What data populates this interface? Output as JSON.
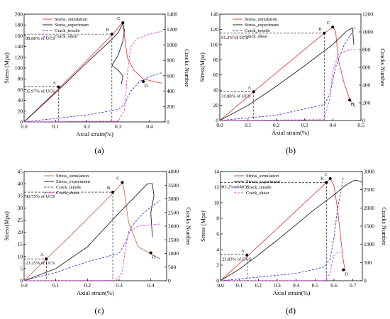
{
  "figure": {
    "panels": [
      {
        "caption": "(a)",
        "chart_data": {
          "type": "line",
          "xlabel": "Axial strain(%)",
          "ylabel": "Stress (Mpa)",
          "y2label": "Cracks Number",
          "xlim": [
            0,
            0.45
          ],
          "ylim": [
            0,
            200
          ],
          "y2lim": [
            0,
            1400
          ],
          "xticks": [
            "0.0",
            "0.1",
            "0.2",
            "0.3",
            "0.4"
          ],
          "yticks": [
            "0",
            "20",
            "40",
            "60",
            "80",
            "100",
            "120",
            "140",
            "160",
            "180",
            "200"
          ],
          "y2ticks": [
            "0",
            "200",
            "400",
            "600",
            "800",
            "1000",
            "1200",
            "1400"
          ],
          "legend_position": "top-left",
          "series": [
            {
              "name": "Stress_simulation",
              "color": "#e8443a",
              "dash": "solid",
              "axis": "left",
              "x": [
                0,
                0.1,
                0.2,
                0.28,
                0.31,
                0.315,
                0.32,
                0.33,
                0.35,
                0.38,
                0.42,
                0.44
              ],
              "y": [
                0,
                56,
                114,
                161,
                182,
                184,
                160,
                118,
                96,
                80,
                74,
                72
              ]
            },
            {
              "name": "Stress_experiment",
              "color": "#222222",
              "dash": "solid",
              "axis": "left",
              "x": [
                0,
                0.1,
                0.2,
                0.28,
                0.3,
                0.315,
                0.32,
                0.315,
                0.3,
                0.28,
                0.3,
                0.315,
                0.31
              ],
              "y": [
                0,
                54,
                110,
                153,
                166,
                183,
                170,
                150,
                124,
                105,
                96,
                85,
                70
              ]
            },
            {
              "name": "Crack_tensile",
              "color": "#3a3ad0",
              "dash": "dash",
              "axis": "right",
              "x": [
                0,
                0.2,
                0.3,
                0.32,
                0.34,
                0.37,
                0.4,
                0.44
              ],
              "y": [
                0,
                90,
                160,
                230,
                400,
                530,
                590,
                640
              ]
            },
            {
              "name": "Crack_shear",
              "color": "#e040e0",
              "dash": "dash",
              "axis": "right",
              "x": [
                0,
                0.3,
                0.32,
                0.33,
                0.34,
                0.36,
                0.4,
                0.44
              ],
              "y": [
                0,
                10,
                150,
                650,
                980,
                1080,
                1140,
                1180
              ]
            }
          ],
          "markers": [
            {
              "label": "A",
              "x": 0.11,
              "y": 65,
              "note": "35.97% of UCS"
            },
            {
              "label": "B",
              "x": 0.28,
              "y": 163,
              "note": "88.88% of UCS"
            },
            {
              "label": "C",
              "x": 0.315,
              "y": 184,
              "note": ""
            },
            {
              "label": "D",
              "x": 0.38,
              "y": 75,
              "note": ""
            }
          ]
        }
      },
      {
        "caption": "(b)",
        "chart_data": {
          "type": "line",
          "xlabel": "Axial strain(%)",
          "ylabel": "Stress(Mpa)",
          "y2label": "Cracks Number",
          "xlim": [
            0,
            0.5
          ],
          "ylim": [
            0,
            140
          ],
          "y2lim": [
            0,
            1200
          ],
          "xticks": [
            "0.0",
            "0.1",
            "0.2",
            "0.3",
            "0.4",
            "0.5"
          ],
          "yticks": [
            "0",
            "20",
            "40",
            "60",
            "80",
            "100",
            "120",
            "140"
          ],
          "y2ticks": [
            "0",
            "200",
            "400",
            "600",
            "800",
            "1000",
            "1200"
          ],
          "legend_position": "top-left",
          "series": [
            {
              "name": "Stress_simulation",
              "color": "#e8443a",
              "dash": "solid",
              "axis": "left",
              "x": [
                0,
                0.12,
                0.25,
                0.37,
                0.4,
                0.41,
                0.42,
                0.44,
                0.46,
                0.48
              ],
              "y": [
                0,
                38,
                78,
                115,
                123,
                118,
                80,
                50,
                28,
                18
              ]
            },
            {
              "name": "Stress_experiment",
              "color": "#222222",
              "dash": "solid",
              "axis": "left",
              "x": [
                0,
                0.1,
                0.2,
                0.3,
                0.4,
                0.45,
                0.47,
                0.475
              ],
              "y": [
                0,
                20,
                45,
                72,
                100,
                118,
                122,
                100
              ]
            },
            {
              "name": "Crack_tensile",
              "color": "#3a3ad0",
              "dash": "dash",
              "axis": "right",
              "x": [
                0,
                0.2,
                0.37,
                0.39,
                0.41,
                0.44,
                0.48
              ],
              "y": [
                0,
                60,
                180,
                300,
                600,
                850,
                1050
              ]
            },
            {
              "name": "Crack_shear",
              "color": "#e040e0",
              "dash": "dash",
              "axis": "right",
              "x": [
                0,
                0.37,
                0.39,
                0.4,
                0.42,
                0.45,
                0.48
              ],
              "y": [
                0,
                10,
                250,
                550,
                750,
                790,
                800
              ]
            }
          ],
          "markers": [
            {
              "label": "A",
              "x": 0.12,
              "y": 38,
              "note": "31.88% of UCS"
            },
            {
              "label": "B",
              "x": 0.37,
              "y": 115,
              "note": "91.2% of UCS"
            },
            {
              "label": "C",
              "x": 0.4,
              "y": 123,
              "note": ""
            },
            {
              "label": "D",
              "x": 0.46,
              "y": 27,
              "note": ""
            }
          ]
        }
      },
      {
        "caption": "(c)",
        "chart_data": {
          "type": "line",
          "xlabel": "Axial strain(%)",
          "ylabel": "Stress(Mpa)",
          "y2label": "Cracks Number",
          "xlim": [
            0,
            0.45
          ],
          "ylim": [
            0,
            45
          ],
          "y2lim": [
            0,
            4000
          ],
          "xticks": [
            "0.0",
            "0.1",
            "0.2",
            "0.3",
            "0.4"
          ],
          "yticks": [
            "0",
            "5",
            "10",
            "15",
            "20",
            "25",
            "30",
            "35",
            "40",
            "45"
          ],
          "y2ticks": [
            "0",
            "500",
            "1000",
            "1500",
            "2000",
            "2500",
            "3000",
            "3500",
            "4000"
          ],
          "legend_position": "top-left",
          "series": [
            {
              "name": "Stress_simulation",
              "color": "#c8704a",
              "dash": "solid",
              "axis": "left",
              "x": [
                0,
                0.07,
                0.15,
                0.28,
                0.31,
                0.315,
                0.33,
                0.36,
                0.4,
                0.43
              ],
              "y": [
                0,
                9,
                19,
                36,
                40.5,
                38,
                24,
                14,
                11,
                9
              ]
            },
            {
              "name": "Stress_experiment",
              "color": "#222222",
              "dash": "solid",
              "axis": "left",
              "x": [
                0,
                0.1,
                0.2,
                0.3,
                0.36,
                0.39,
                0.405,
                0.41,
                0.4,
                0.405
              ],
              "y": [
                0,
                5,
                14,
                28,
                36,
                40,
                40,
                35,
                28,
                18
              ]
            },
            {
              "name": "Crack_tensile",
              "color": "#3a3ad0",
              "dash": "dash",
              "axis": "right",
              "x": [
                0,
                0.1,
                0.2,
                0.3,
                0.32,
                0.34,
                0.37,
                0.4,
                0.43
              ],
              "y": [
                0,
                300,
                700,
                1000,
                1400,
                2000,
                2400,
                2700,
                2950
              ]
            },
            {
              "name": "Crack_shear",
              "color": "#e040e0",
              "dash": "dash",
              "axis": "right",
              "x": [
                0,
                0.29,
                0.31,
                0.32,
                0.33,
                0.36,
                0.4,
                0.43
              ],
              "y": [
                0,
                10,
                300,
                1200,
                1800,
                2000,
                2050,
                2080
              ]
            }
          ],
          "markers": [
            {
              "label": "A",
              "x": 0.07,
              "y": 9,
              "note": "23.25% of UCS"
            },
            {
              "label": "B",
              "x": 0.28,
              "y": 36.5,
              "note": "90.75% of UCS"
            },
            {
              "label": "C",
              "x": 0.31,
              "y": 40.5,
              "note": ""
            },
            {
              "label": "D",
              "x": 0.4,
              "y": 11.5,
              "note": ""
            }
          ]
        }
      },
      {
        "caption": "(d)",
        "chart_data": {
          "type": "line",
          "xlabel": "Axial strain(%)",
          "ylabel": "Stress (Mpa)",
          "y2label": "Cracks Number",
          "xlim": [
            0,
            0.75
          ],
          "ylim": [
            0,
            14
          ],
          "y2lim": [
            0,
            3000
          ],
          "xticks": [
            "0.0",
            "0.1",
            "0.2",
            "0.3",
            "0.4",
            "0.5",
            "0.6",
            "0.7"
          ],
          "yticks": [
            "0",
            "2",
            "4",
            "6",
            "8",
            "10",
            "12",
            "14"
          ],
          "y2ticks": [
            "0",
            "500",
            "1000",
            "1500",
            "2000",
            "2500",
            "3000"
          ],
          "legend_position": "top-left",
          "series": [
            {
              "name": "Stress_simulation",
              "color": "#e8443a",
              "dash": "solid",
              "axis": "left",
              "x": [
                0,
                0.14,
                0.3,
                0.56,
                0.58,
                0.6,
                0.62,
                0.64,
                0.65,
                0.66
              ],
              "y": [
                0,
                3.1,
                6.7,
                12.6,
                13.1,
                12.2,
                9,
                4.5,
                2.5,
                1.3
              ]
            },
            {
              "name": "Stress_experiment",
              "color": "#222222",
              "dash": "solid",
              "axis": "left",
              "x": [
                0,
                0.1,
                0.2,
                0.3,
                0.4,
                0.5,
                0.6,
                0.66,
                0.7,
                0.72,
                0.75
              ],
              "y": [
                0,
                1.5,
                3.3,
                5.2,
                7.2,
                9.2,
                11,
                12.2,
                12.8,
                12.9,
                12.6
              ]
            },
            {
              "name": "Crack_tensile",
              "color": "#3a3ad0",
              "dash": "dash",
              "axis": "right",
              "x": [
                0,
                0.2,
                0.4,
                0.55,
                0.58,
                0.6,
                0.62,
                0.65
              ],
              "y": [
                0,
                100,
                200,
                380,
                600,
                1200,
                2000,
                2850
              ]
            },
            {
              "name": "Crack_shear",
              "color": "#e040e0",
              "dash": "dash",
              "axis": "right",
              "x": [
                0,
                0.55,
                0.58,
                0.59,
                0.6,
                0.62,
                0.65
              ],
              "y": [
                0,
                5,
                200,
                500,
                700,
                780,
                800
              ]
            }
          ],
          "markers": [
            {
              "label": "A",
              "x": 0.14,
              "y": 3.3,
              "note": "23.83% of UCS"
            },
            {
              "label": "B",
              "x": 0.56,
              "y": 12.6,
              "note": "93.2% of UCS"
            },
            {
              "label": "C",
              "x": 0.58,
              "y": 13.1,
              "note": ""
            },
            {
              "label": "D",
              "x": 0.65,
              "y": 1.4,
              "note": ""
            }
          ]
        }
      }
    ]
  }
}
